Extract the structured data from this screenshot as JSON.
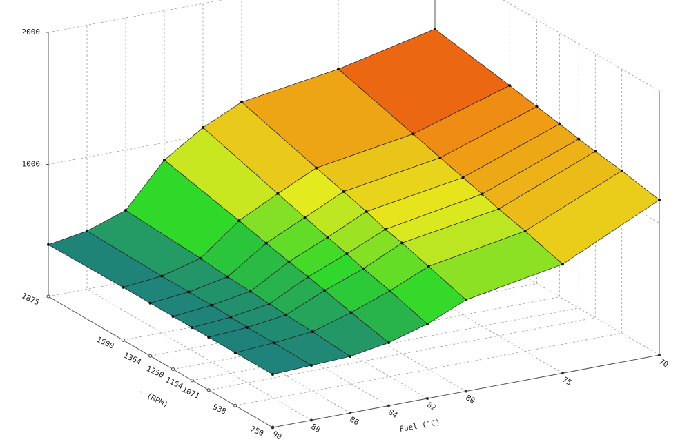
{
  "chart_data": {
    "type": "surface3d",
    "x_label": "Fuel (°C)",
    "y_label": "- (RPM)",
    "x": [
      90,
      88,
      86,
      84,
      82,
      80,
      75,
      70
    ],
    "y": [
      750,
      938,
      1071,
      1154,
      1250,
      1364,
      1500,
      1875
    ],
    "z": [
      [
        402,
        415,
        428,
        478,
        564,
        692,
        825,
        1175
      ],
      [
        400,
        420,
        450,
        540,
        650,
        780,
        910,
        1230
      ],
      [
        400,
        420,
        460,
        590,
        700,
        840,
        960,
        1260
      ],
      [
        400,
        425,
        470,
        620,
        740,
        870,
        1000,
        1280
      ],
      [
        400,
        430,
        480,
        650,
        780,
        920,
        1040,
        1310
      ],
      [
        400,
        430,
        490,
        690,
        830,
        970,
        1090,
        1340
      ],
      [
        400,
        430,
        510,
        740,
        890,
        1030,
        1150,
        1380
      ],
      [
        392,
        441,
        543,
        869,
        1060,
        1198,
        1311,
        1478
      ]
    ],
    "xlim": [
      90,
      70
    ],
    "ylim": [
      750,
      1875
    ],
    "zlim": [
      0,
      2000
    ],
    "xticks": [
      90,
      88,
      86,
      84,
      82,
      80,
      75,
      70
    ],
    "yticks": [
      750,
      938,
      1071,
      1154,
      1250,
      1364,
      1500,
      1875
    ],
    "zticks": [
      1000,
      2000
    ],
    "grid": true,
    "colormap": [
      "#1e7c80",
      "#2fd82a",
      "#e6ea1e",
      "#ee9a14",
      "#ea2a0e"
    ]
  }
}
